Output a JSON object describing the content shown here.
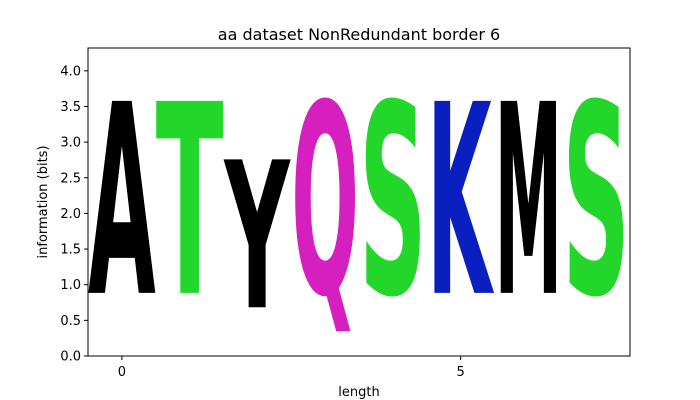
{
  "chart_data": {
    "type": "sequence-logo",
    "title": "aa dataset NonRedundant border 6",
    "xlabel": "length",
    "ylabel": "information (bits)",
    "xlim": [
      -0.5,
      7.5
    ],
    "ylim": [
      0,
      4.32
    ],
    "xticks": [
      0,
      5
    ],
    "yticks": [
      0.0,
      0.5,
      1.0,
      1.5,
      2.0,
      2.5,
      3.0,
      3.5,
      4.0
    ],
    "grid": false,
    "positions": [
      {
        "x": 0,
        "letters": [
          {
            "letter": "A",
            "height": 4.32,
            "color": "#000000"
          }
        ]
      },
      {
        "x": 1,
        "letters": [
          {
            "letter": "T",
            "height": 4.32,
            "color": "#22d62a"
          }
        ]
      },
      {
        "x": 2,
        "letters": [
          {
            "letter": "Y",
            "height": 3.33,
            "color": "#000000"
          }
        ]
      },
      {
        "x": 3,
        "letters": [
          {
            "letter": "Q",
            "height": 4.32,
            "color": "#d61fbf"
          }
        ]
      },
      {
        "x": 4,
        "letters": [
          {
            "letter": "S",
            "height": 4.32,
            "color": "#22d62a"
          }
        ]
      },
      {
        "x": 5,
        "letters": [
          {
            "letter": "K",
            "height": 4.32,
            "color": "#0a1fbf"
          }
        ]
      },
      {
        "x": 6,
        "letters": [
          {
            "letter": "M",
            "height": 4.32,
            "color": "#000000"
          }
        ]
      },
      {
        "x": 7,
        "letters": [
          {
            "letter": "S",
            "height": 4.32,
            "color": "#22d62a"
          }
        ]
      }
    ]
  }
}
